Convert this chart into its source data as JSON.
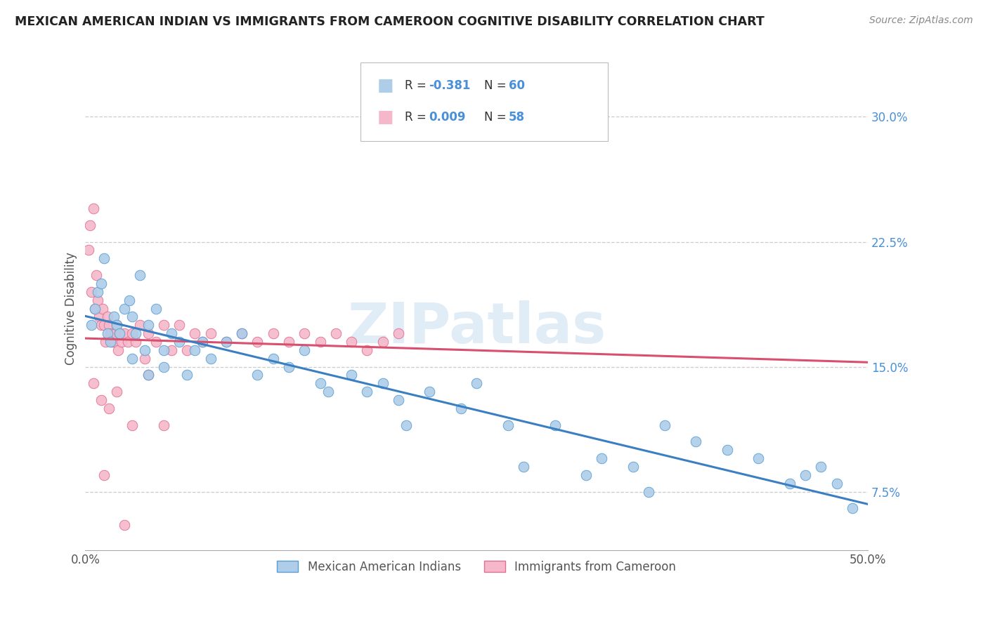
{
  "title": "MEXICAN AMERICAN INDIAN VS IMMIGRANTS FROM CAMEROON COGNITIVE DISABILITY CORRELATION CHART",
  "source": "Source: ZipAtlas.com",
  "xlim": [
    0.0,
    50.0
  ],
  "ylim": [
    4.0,
    33.0
  ],
  "watermark": "ZIPatlas",
  "ytick_vals": [
    7.5,
    15.0,
    22.5,
    30.0
  ],
  "xtick_vals": [
    0.0,
    50.0
  ],
  "blue": {
    "label": "Mexican American Indians",
    "color": "#aecde8",
    "edge_color": "#5a9fd4",
    "trend_color": "#3a7fc1",
    "R": -0.381,
    "N": 60,
    "x": [
      0.4,
      0.6,
      0.8,
      1.0,
      1.2,
      1.4,
      1.6,
      1.8,
      2.0,
      2.2,
      2.5,
      2.8,
      3.0,
      3.2,
      3.5,
      3.8,
      4.0,
      4.5,
      5.0,
      5.5,
      6.0,
      7.0,
      8.0,
      9.0,
      10.0,
      11.0,
      12.0,
      13.0,
      14.0,
      15.0,
      17.0,
      18.0,
      19.0,
      20.0,
      22.0,
      24.0,
      25.0,
      27.0,
      30.0,
      33.0,
      35.0,
      37.0,
      39.0,
      41.0,
      43.0,
      45.0,
      46.0,
      47.0,
      48.0,
      49.0,
      3.0,
      4.0,
      5.0,
      6.5,
      7.5,
      15.5,
      20.5,
      28.0,
      32.0,
      36.0
    ],
    "y": [
      17.5,
      18.5,
      19.5,
      20.0,
      21.5,
      17.0,
      16.5,
      18.0,
      17.5,
      17.0,
      18.5,
      19.0,
      18.0,
      17.0,
      20.5,
      16.0,
      17.5,
      18.5,
      16.0,
      17.0,
      16.5,
      16.0,
      15.5,
      16.5,
      17.0,
      14.5,
      15.5,
      15.0,
      16.0,
      14.0,
      14.5,
      13.5,
      14.0,
      13.0,
      13.5,
      12.5,
      14.0,
      11.5,
      11.5,
      9.5,
      9.0,
      11.5,
      10.5,
      10.0,
      9.5,
      8.0,
      8.5,
      9.0,
      8.0,
      6.5,
      15.5,
      14.5,
      15.0,
      14.5,
      16.5,
      13.5,
      11.5,
      9.0,
      8.5,
      7.5
    ]
  },
  "pink": {
    "label": "Immigrants from Cameroon",
    "color": "#f5b8ca",
    "edge_color": "#e07090",
    "trend_color": "#d94f6e",
    "R": 0.009,
    "N": 58,
    "x": [
      0.2,
      0.3,
      0.4,
      0.5,
      0.6,
      0.7,
      0.8,
      0.9,
      1.0,
      1.1,
      1.2,
      1.3,
      1.4,
      1.5,
      1.6,
      1.7,
      1.8,
      1.9,
      2.0,
      2.1,
      2.2,
      2.3,
      2.5,
      2.7,
      3.0,
      3.2,
      3.5,
      3.8,
      4.0,
      4.5,
      5.0,
      5.5,
      6.0,
      6.5,
      7.0,
      7.5,
      8.0,
      9.0,
      10.0,
      11.0,
      12.0,
      13.0,
      14.0,
      15.0,
      16.0,
      17.0,
      18.0,
      19.0,
      20.0,
      0.5,
      1.0,
      1.5,
      2.0,
      3.0,
      4.0,
      1.2,
      2.5,
      5.0
    ],
    "y": [
      22.0,
      23.5,
      19.5,
      24.5,
      18.5,
      20.5,
      19.0,
      18.0,
      17.5,
      18.5,
      17.5,
      16.5,
      18.0,
      17.5,
      17.0,
      16.5,
      16.5,
      17.0,
      17.5,
      16.0,
      17.0,
      16.5,
      17.0,
      16.5,
      17.0,
      16.5,
      17.5,
      15.5,
      17.0,
      16.5,
      17.5,
      16.0,
      17.5,
      16.0,
      17.0,
      16.5,
      17.0,
      16.5,
      17.0,
      16.5,
      17.0,
      16.5,
      17.0,
      16.5,
      17.0,
      16.5,
      16.0,
      16.5,
      17.0,
      14.0,
      13.0,
      12.5,
      13.5,
      11.5,
      14.5,
      8.5,
      5.5,
      11.5
    ]
  }
}
